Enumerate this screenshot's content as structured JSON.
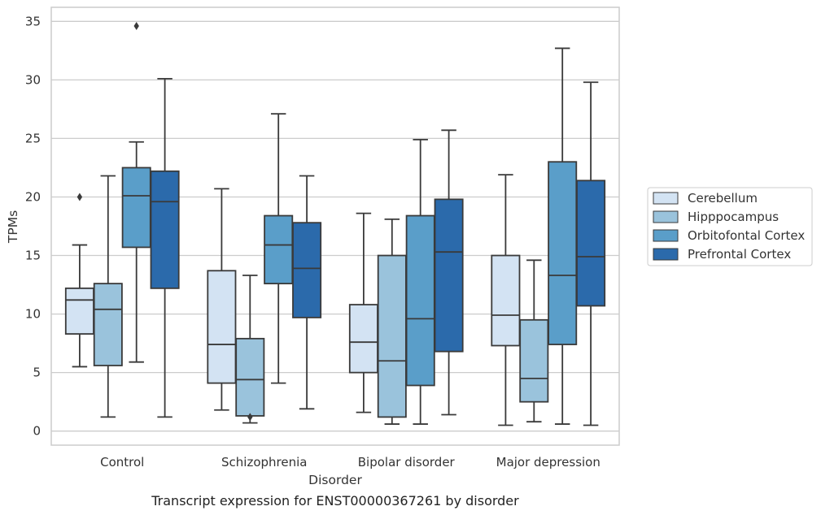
{
  "chart_data": {
    "type": "box",
    "xlabel": "Disorder",
    "ylabel": "TPMs",
    "caption": "Transcript expression for ENST00000367261 by disorder",
    "ylim": [
      -1.2,
      36.2
    ],
    "yticks": [
      0,
      5,
      10,
      15,
      20,
      25,
      30,
      35
    ],
    "grid": "horizontal",
    "legend_position": "right",
    "categories": [
      "Control",
      "Schizophrenia",
      "Bipolar disorder",
      "Major depression"
    ],
    "series": [
      {
        "name": "Cerebellum",
        "color": "#d3e3f3",
        "boxes": [
          {
            "whisker_low": 5.5,
            "q1": 8.3,
            "median": 11.2,
            "q3": 12.2,
            "whisker_high": 15.9,
            "outliers": [
              20.0
            ]
          },
          {
            "whisker_low": 1.8,
            "q1": 4.1,
            "median": 7.4,
            "q3": 13.7,
            "whisker_high": 20.7,
            "outliers": []
          },
          {
            "whisker_low": 1.6,
            "q1": 5.0,
            "median": 7.6,
            "q3": 10.8,
            "whisker_high": 18.6,
            "outliers": []
          },
          {
            "whisker_low": 0.5,
            "q1": 7.3,
            "median": 9.9,
            "q3": 15.0,
            "whisker_high": 21.9,
            "outliers": []
          }
        ]
      },
      {
        "name": "Hipppocampus",
        "color": "#9ac3dc",
        "boxes": [
          {
            "whisker_low": 1.2,
            "q1": 5.6,
            "median": 10.4,
            "q3": 12.6,
            "whisker_high": 21.8,
            "outliers": []
          },
          {
            "whisker_low": 0.7,
            "q1": 1.3,
            "median": 4.4,
            "q3": 7.9,
            "whisker_high": 13.3,
            "outliers": [
              1.2
            ]
          },
          {
            "whisker_low": 0.6,
            "q1": 1.2,
            "median": 6.0,
            "q3": 15.0,
            "whisker_high": 18.1,
            "outliers": []
          },
          {
            "whisker_low": 0.8,
            "q1": 2.5,
            "median": 4.5,
            "q3": 9.5,
            "whisker_high": 14.6,
            "outliers": []
          }
        ]
      },
      {
        "name": "Orbitofontal Cortex",
        "color": "#5a9ec9",
        "boxes": [
          {
            "whisker_low": 5.9,
            "q1": 15.7,
            "median": 20.1,
            "q3": 22.5,
            "whisker_high": 24.7,
            "outliers": [
              34.6
            ]
          },
          {
            "whisker_low": 4.1,
            "q1": 12.6,
            "median": 15.9,
            "q3": 18.4,
            "whisker_high": 27.1,
            "outliers": []
          },
          {
            "whisker_low": 0.6,
            "q1": 3.9,
            "median": 9.6,
            "q3": 18.4,
            "whisker_high": 24.9,
            "outliers": []
          },
          {
            "whisker_low": 0.6,
            "q1": 7.4,
            "median": 13.3,
            "q3": 23.0,
            "whisker_high": 32.7,
            "outliers": []
          }
        ]
      },
      {
        "name": "Prefrontal Cortex",
        "color": "#2b6aab",
        "boxes": [
          {
            "whisker_low": 1.2,
            "q1": 12.2,
            "median": 19.6,
            "q3": 22.2,
            "whisker_high": 30.1,
            "outliers": []
          },
          {
            "whisker_low": 1.9,
            "q1": 9.7,
            "median": 13.9,
            "q3": 17.8,
            "whisker_high": 21.8,
            "outliers": []
          },
          {
            "whisker_low": 1.4,
            "q1": 6.8,
            "median": 15.3,
            "q3": 19.8,
            "whisker_high": 25.7,
            "outliers": []
          },
          {
            "whisker_low": 0.5,
            "q1": 10.7,
            "median": 14.9,
            "q3": 21.4,
            "whisker_high": 29.8,
            "outliers": []
          }
        ]
      }
    ]
  }
}
